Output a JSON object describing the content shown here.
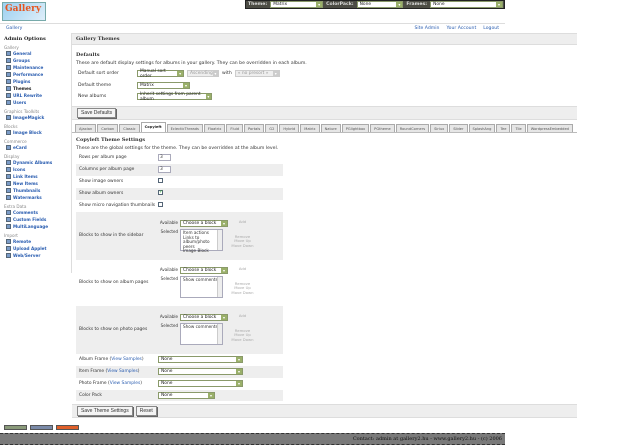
{
  "topbar": {
    "theme_label": "Theme:",
    "theme_value": "Matrix",
    "colorpack_label": "ColorPack:",
    "colorpack_value": "None",
    "frames_label": "Frames:",
    "frames_value": "None"
  },
  "logo_text": "Gallery",
  "breadcrumb": "Gallery",
  "user_links": [
    "Site Admin",
    "Your Account",
    "Logout"
  ],
  "sidebar": {
    "title": "Admin Options",
    "groups": [
      {
        "label": "Gallery",
        "items": [
          "General",
          "Groups",
          "Maintenance",
          "Performance",
          "Plugins",
          "Themes",
          "URL Rewrite",
          "Users"
        ]
      },
      {
        "label": "Graphics Toolkits",
        "items": [
          "ImageMagick"
        ]
      },
      {
        "label": "Blocks",
        "items": [
          "Image Block"
        ]
      },
      {
        "label": "Commerce",
        "items": [
          "eCard"
        ]
      },
      {
        "label": "Display",
        "items": [
          "Dynamic Albums",
          "Icons",
          "Link Items",
          "New Items",
          "Thumbnails",
          "Watermarks"
        ]
      },
      {
        "label": "Extra Data",
        "items": [
          "Comments",
          "Custom Fields",
          "MultiLanguage"
        ]
      },
      {
        "label": "Import",
        "items": [
          "Remote",
          "Upload Applet",
          "Web/Server"
        ]
      }
    ],
    "current": "Themes"
  },
  "main": {
    "title": "Gallery Themes",
    "defaults": {
      "heading": "Defaults",
      "description": "These are default display settings for albums in your gallery. They can be overridden in each album.",
      "sort_label": "Default sort order",
      "sort_value": "Manual sort order",
      "direction_value": "Ascending",
      "with_label": "with",
      "presort_value": "« no presort »",
      "theme_label": "Default theme",
      "theme_value": "Matrix",
      "new_albums_label": "New albums",
      "new_albums_value": "Inherit settings from parent album",
      "save_label": "Save Defaults"
    },
    "tabs": [
      "Ajaxian",
      "Carbon",
      "Classic",
      "Copyleft",
      "EclecticThreads",
      "Floatrix",
      "Fluid",
      "PortaIs",
      "G2",
      "Hybrid",
      "Matrix",
      "Nature",
      "PGlightbox",
      "PGtheme",
      "RoundCorners",
      "Siriux",
      "Slider",
      "SplashAng",
      "Tee",
      "Tile",
      "WordpressEmbedded"
    ],
    "active_tab": "Copyleft",
    "settings": {
      "heading": "Copyleft Theme Settings",
      "description": "These are the global settings for the theme. They can be overridden at the album level.",
      "rows_label": "Rows per album page",
      "rows_value": "3",
      "cols_label": "Columns per album page",
      "cols_value": "3",
      "image_owners_label": "Show image owners",
      "image_owners": false,
      "album_owners_label": "Show album owners",
      "album_owners": true,
      "micro_nav_label": "Show micro navigation thumbnails",
      "micro_nav": false,
      "available_label": "Available",
      "selected_label": "Selected",
      "choose_value": "Choose a block",
      "add_label": "Add",
      "remove_label": "Remove",
      "up_label": "Move Up",
      "down_label": "Move Down",
      "blocks": [
        {
          "label": "Blocks to show in the sidebar",
          "selected": [
            "Item actions",
            "Links to album/photo peers",
            "Image Block"
          ]
        },
        {
          "label": "Blocks to show on album pages",
          "selected": [
            "Show comments"
          ]
        },
        {
          "label": "Blocks to show on photo pages",
          "selected": [
            "Show comments"
          ]
        }
      ],
      "view_samples": "View Samples",
      "album_frame_label": "Album Frame",
      "album_frame_value": "None",
      "item_frame_label": "Item Frame",
      "item_frame_value": "None",
      "photo_frame_label": "Photo Frame",
      "photo_frame_value": "None",
      "color_pack_label": "Color Pack",
      "color_pack_value": "None",
      "save_label": "Save Theme Settings",
      "reset_label": "Reset"
    }
  },
  "footer": "Contact: admin at gallery2.hu - www.gallery2.hu - (c) 2006"
}
